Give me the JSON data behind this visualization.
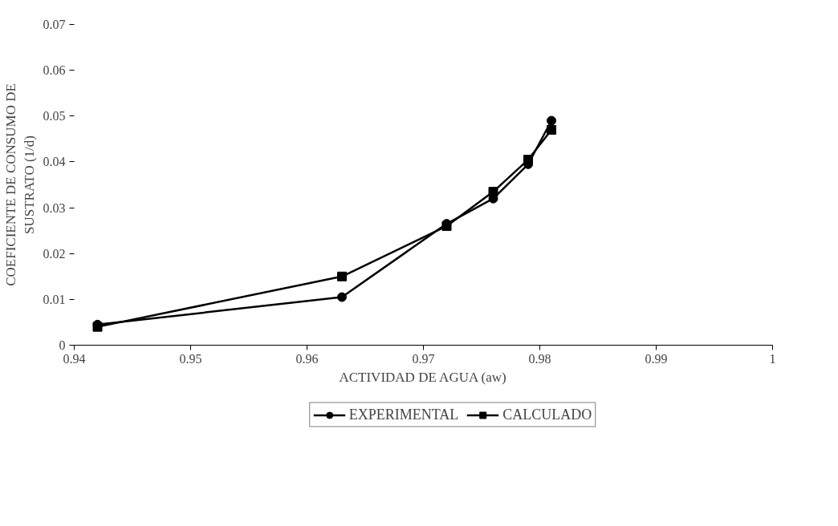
{
  "chart_data": {
    "type": "line",
    "xlabel": "ACTIVIDAD DE AGUA (aw)",
    "ylabel": "COEFICIENTE DE CONSUMO DE\nSUSTRATO (1/d)",
    "x": [
      0.942,
      0.963,
      0.972,
      0.976,
      0.979,
      0.981
    ],
    "series": [
      {
        "name": "EXPERIMENTAL",
        "color": "#000000",
        "marker": "circle",
        "values": [
          0.0045,
          0.0105,
          0.0265,
          0.032,
          0.0395,
          0.049
        ]
      },
      {
        "name": "CALCULADO",
        "color": "#000000",
        "marker": "square",
        "values": [
          0.004,
          0.015,
          0.026,
          0.0335,
          0.0405,
          0.047
        ]
      }
    ],
    "xlim": [
      0.94,
      1
    ],
    "xticks": [
      0.94,
      0.95,
      0.96,
      0.97,
      0.98,
      0.99,
      1
    ],
    "ylim": [
      0,
      0.07
    ],
    "yticks": [
      0,
      0.01,
      0.02,
      0.03,
      0.04,
      0.05,
      0.06,
      0.07
    ],
    "grid": false,
    "legend": "bottom",
    "line_style": "solid"
  }
}
